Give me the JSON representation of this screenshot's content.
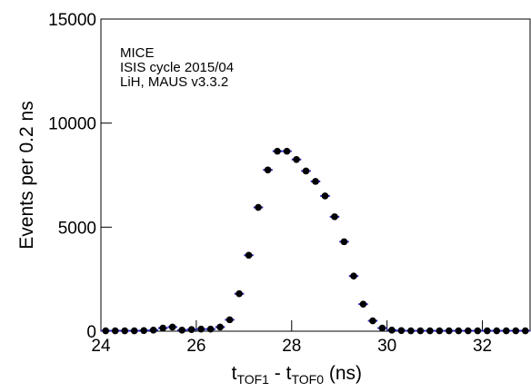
{
  "chart_data": {
    "type": "errorbar",
    "annotations": [
      "MICE",
      "ISIS cycle 2015/04",
      "LiH, MAUS v3.3.2"
    ],
    "ylabel": "Events per 0.2 ns",
    "xlabel": [
      "t",
      "TOF1",
      " - t",
      "TOF0",
      " (ns)"
    ],
    "x": [
      24.1,
      24.3,
      24.5,
      24.7,
      24.9,
      25.1,
      25.3,
      25.5,
      25.7,
      25.9,
      26.1,
      26.3,
      26.5,
      26.7,
      26.9,
      27.1,
      27.3,
      27.5,
      27.7,
      27.9,
      28.1,
      28.3,
      28.5,
      28.7,
      28.9,
      29.1,
      29.3,
      29.5,
      29.7,
      29.9,
      30.1,
      30.3,
      30.5,
      30.7,
      30.9,
      31.1,
      31.3,
      31.5,
      31.7,
      31.9,
      32.1,
      32.3,
      32.5,
      32.7,
      32.9
    ],
    "values": [
      20,
      20,
      20,
      20,
      30,
      50,
      150,
      200,
      50,
      80,
      100,
      100,
      200,
      550,
      1800,
      3650,
      5950,
      7750,
      8650,
      8650,
      8250,
      7700,
      7200,
      6500,
      5500,
      4300,
      2650,
      1300,
      500,
      150,
      50,
      30,
      20,
      20,
      20,
      20,
      20,
      20,
      20,
      20,
      20,
      20,
      20,
      20,
      20
    ],
    "xerr": 0.1,
    "color": "#000000",
    "errorbar_color": "#2a2acc",
    "xlim": [
      24,
      33
    ],
    "xticks": [
      24,
      26,
      28,
      30,
      32
    ],
    "ylim": [
      0,
      15000
    ],
    "yticks": [
      0,
      5000,
      10000,
      15000
    ]
  }
}
